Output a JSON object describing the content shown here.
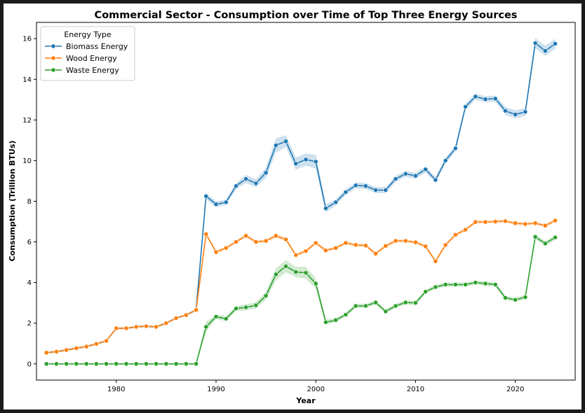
{
  "chart_data": {
    "type": "line",
    "title": "Commercial Sector - Consumption over Time of Top Three Energy Sources",
    "xlabel": "Year",
    "ylabel": "Consumption (Trillion BTUs)",
    "xlim": [
      1972,
      2026
    ],
    "ylim": [
      -0.8,
      16.8
    ],
    "x_ticks": [
      1980,
      1990,
      2000,
      2010,
      2020
    ],
    "y_ticks": [
      0,
      2,
      4,
      6,
      8,
      10,
      12,
      14,
      16
    ],
    "grid": false,
    "legend": {
      "title": "Energy Type",
      "position": "top-left"
    },
    "x": [
      1973,
      1974,
      1975,
      1976,
      1977,
      1978,
      1979,
      1980,
      1981,
      1982,
      1983,
      1984,
      1985,
      1986,
      1987,
      1988,
      1989,
      1990,
      1991,
      1992,
      1993,
      1994,
      1995,
      1996,
      1997,
      1998,
      1999,
      2000,
      2001,
      2002,
      2003,
      2004,
      2005,
      2006,
      2007,
      2008,
      2009,
      2010,
      2011,
      2012,
      2013,
      2014,
      2015,
      2016,
      2017,
      2018,
      2019,
      2020,
      2021,
      2022,
      2023,
      2024
    ],
    "series": [
      {
        "name": "Biomass Energy",
        "color": "#1f77b4",
        "values": [
          0.55,
          0.6,
          0.68,
          0.77,
          0.85,
          0.98,
          1.13,
          1.75,
          1.75,
          1.82,
          1.85,
          1.82,
          2.0,
          2.25,
          2.4,
          2.65,
          8.25,
          7.85,
          7.95,
          8.75,
          9.1,
          8.88,
          9.4,
          10.75,
          10.95,
          9.85,
          10.05,
          9.95,
          7.65,
          7.95,
          8.45,
          8.78,
          8.75,
          8.55,
          8.55,
          9.1,
          9.35,
          9.25,
          9.57,
          9.05,
          10.0,
          10.6,
          12.65,
          13.15,
          13.02,
          13.05,
          12.45,
          12.27,
          12.4,
          15.78,
          15.4,
          15.75
        ],
        "band": [
          0.05,
          0.05,
          0.05,
          0.05,
          0.05,
          0.05,
          0.05,
          0.05,
          0.05,
          0.05,
          0.05,
          0.05,
          0.05,
          0.05,
          0.05,
          0.05,
          0.15,
          0.15,
          0.12,
          0.15,
          0.2,
          0.2,
          0.25,
          0.35,
          0.3,
          0.3,
          0.3,
          0.35,
          0.2,
          0.15,
          0.15,
          0.15,
          0.15,
          0.15,
          0.15,
          0.15,
          0.15,
          0.15,
          0.15,
          0.15,
          0.15,
          0.15,
          0.15,
          0.15,
          0.15,
          0.15,
          0.2,
          0.2,
          0.2,
          0.25,
          0.25,
          0.25
        ]
      },
      {
        "name": "Wood Energy",
        "color": "#ff7f0e",
        "values": [
          0.55,
          0.6,
          0.68,
          0.77,
          0.85,
          0.98,
          1.13,
          1.75,
          1.75,
          1.82,
          1.85,
          1.82,
          2.0,
          2.25,
          2.4,
          2.65,
          6.38,
          5.5,
          5.7,
          6.0,
          6.3,
          6.0,
          6.05,
          6.3,
          6.12,
          5.35,
          5.55,
          5.95,
          5.58,
          5.7,
          5.95,
          5.85,
          5.82,
          5.42,
          5.8,
          6.05,
          6.05,
          5.98,
          5.78,
          5.05,
          5.85,
          6.35,
          6.6,
          6.98,
          6.98,
          7.0,
          7.02,
          6.92,
          6.88,
          6.92,
          6.8,
          7.05
        ],
        "band": [
          0.05,
          0.05,
          0.05,
          0.05,
          0.05,
          0.05,
          0.05,
          0.05,
          0.05,
          0.05,
          0.05,
          0.05,
          0.05,
          0.05,
          0.05,
          0.05,
          0.1,
          0.08,
          0.08,
          0.08,
          0.08,
          0.08,
          0.08,
          0.1,
          0.08,
          0.08,
          0.08,
          0.08,
          0.08,
          0.08,
          0.08,
          0.08,
          0.08,
          0.08,
          0.08,
          0.08,
          0.08,
          0.08,
          0.08,
          0.08,
          0.08,
          0.08,
          0.08,
          0.08,
          0.08,
          0.08,
          0.08,
          0.08,
          0.08,
          0.08,
          0.08,
          0.08
        ]
      },
      {
        "name": "Waste Energy",
        "color": "#2ca02c",
        "values": [
          0,
          0,
          0,
          0,
          0,
          0,
          0,
          0,
          0,
          0,
          0,
          0,
          0,
          0,
          0,
          0,
          1.82,
          2.32,
          2.22,
          2.72,
          2.78,
          2.88,
          3.35,
          4.4,
          4.8,
          4.52,
          4.48,
          3.95,
          2.05,
          2.15,
          2.42,
          2.85,
          2.85,
          3.02,
          2.58,
          2.85,
          3.02,
          3.0,
          3.55,
          3.78,
          3.9,
          3.9,
          3.9,
          4.0,
          3.95,
          3.9,
          3.25,
          3.15,
          3.28,
          6.25,
          5.92,
          6.22
        ],
        "band": [
          0.02,
          0.02,
          0.02,
          0.02,
          0.02,
          0.02,
          0.02,
          0.02,
          0.02,
          0.02,
          0.02,
          0.02,
          0.02,
          0.02,
          0.02,
          0.02,
          0.25,
          0.12,
          0.12,
          0.12,
          0.15,
          0.15,
          0.2,
          0.3,
          0.3,
          0.25,
          0.3,
          0.25,
          0.12,
          0.1,
          0.1,
          0.1,
          0.1,
          0.1,
          0.1,
          0.1,
          0.1,
          0.1,
          0.1,
          0.1,
          0.1,
          0.1,
          0.1,
          0.1,
          0.1,
          0.1,
          0.1,
          0.1,
          0.1,
          0.12,
          0.12,
          0.12
        ]
      }
    ]
  }
}
